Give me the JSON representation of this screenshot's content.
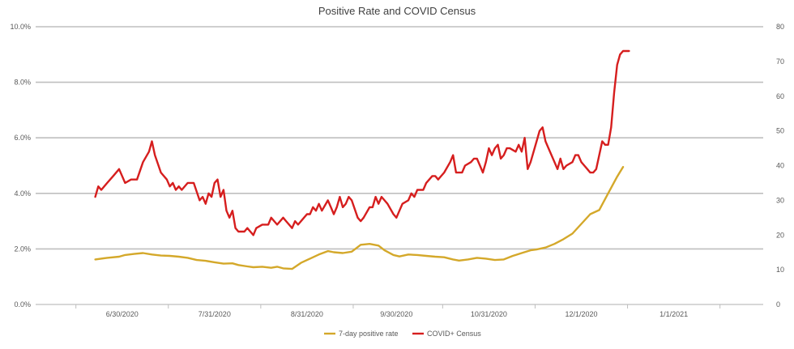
{
  "chart_data": {
    "type": "line",
    "title": "Positive Rate and COVID Census",
    "x_axis": {
      "type": "date",
      "ticks": [
        "6/30/2020",
        "7/31/2020",
        "8/31/2020",
        "9/30/2020",
        "10/31/2020",
        "12/1/2020",
        "1/1/2021"
      ],
      "range": [
        "2020-06-01",
        "2021-01-31"
      ]
    },
    "y_left": {
      "range": [
        0,
        0.1
      ],
      "ticks": [
        "0.0%",
        "2.0%",
        "4.0%",
        "6.0%",
        "8.0%",
        "10.0%"
      ]
    },
    "y_right": {
      "range": [
        0,
        80
      ],
      "ticks": [
        "0",
        "10",
        "20",
        "30",
        "40",
        "50",
        "60",
        "70",
        "80"
      ]
    },
    "grid": true,
    "legend_position": "bottom",
    "series": [
      {
        "name": "7-day positive rate",
        "axis": "left",
        "color": "#d4a82a",
        "points": [
          [
            "2020-06-21",
            0.0162
          ],
          [
            "2020-06-25",
            0.0168
          ],
          [
            "2020-06-29",
            0.0172
          ],
          [
            "2020-07-01",
            0.0178
          ],
          [
            "2020-07-04",
            0.0182
          ],
          [
            "2020-07-07",
            0.0185
          ],
          [
            "2020-07-10",
            0.018
          ],
          [
            "2020-07-13",
            0.0176
          ],
          [
            "2020-07-16",
            0.0175
          ],
          [
            "2020-07-19",
            0.0172
          ],
          [
            "2020-07-22",
            0.0168
          ],
          [
            "2020-07-25",
            0.016
          ],
          [
            "2020-07-28",
            0.0157
          ],
          [
            "2020-07-31",
            0.0152
          ],
          [
            "2020-08-03",
            0.0147
          ],
          [
            "2020-08-06",
            0.0148
          ],
          [
            "2020-08-08",
            0.0142
          ],
          [
            "2020-08-11",
            0.0137
          ],
          [
            "2020-08-13",
            0.0134
          ],
          [
            "2020-08-16",
            0.0136
          ],
          [
            "2020-08-19",
            0.0132
          ],
          [
            "2020-08-21",
            0.0136
          ],
          [
            "2020-08-23",
            0.013
          ],
          [
            "2020-08-26",
            0.0128
          ],
          [
            "2020-08-29",
            0.015
          ],
          [
            "2020-09-01",
            0.0165
          ],
          [
            "2020-09-04",
            0.018
          ],
          [
            "2020-09-07",
            0.0192
          ],
          [
            "2020-09-09",
            0.0188
          ],
          [
            "2020-09-12",
            0.0185
          ],
          [
            "2020-09-15",
            0.019
          ],
          [
            "2020-09-18",
            0.0215
          ],
          [
            "2020-09-21",
            0.0218
          ],
          [
            "2020-09-24",
            0.0212
          ],
          [
            "2020-09-26",
            0.0195
          ],
          [
            "2020-09-29",
            0.0178
          ],
          [
            "2020-10-01",
            0.0173
          ],
          [
            "2020-10-04",
            0.018
          ],
          [
            "2020-10-07",
            0.0178
          ],
          [
            "2020-10-10",
            0.0175
          ],
          [
            "2020-10-13",
            0.0172
          ],
          [
            "2020-10-16",
            0.017
          ],
          [
            "2020-10-19",
            0.0162
          ],
          [
            "2020-10-21",
            0.0158
          ],
          [
            "2020-10-24",
            0.0162
          ],
          [
            "2020-10-27",
            0.0168
          ],
          [
            "2020-10-30",
            0.0165
          ],
          [
            "2020-11-02",
            0.016
          ],
          [
            "2020-11-05",
            0.0162
          ],
          [
            "2020-11-08",
            0.0175
          ],
          [
            "2020-11-11",
            0.0185
          ],
          [
            "2020-11-14",
            0.0195
          ],
          [
            "2020-11-16",
            0.0198
          ],
          [
            "2020-11-19",
            0.0205
          ],
          [
            "2020-11-22",
            0.0218
          ],
          [
            "2020-11-25",
            0.0235
          ],
          [
            "2020-11-28",
            0.0255
          ],
          [
            "2020-12-01",
            0.029
          ],
          [
            "2020-12-04",
            0.0325
          ],
          [
            "2020-12-07",
            0.034
          ],
          [
            "2020-12-10",
            0.04
          ],
          [
            "2020-12-13",
            0.046
          ],
          [
            "2020-12-15",
            0.0495
          ]
        ]
      },
      {
        "name": "COVID+ Census",
        "axis": "right",
        "color": "#d61e1e",
        "points": [
          [
            "2020-06-21",
            31
          ],
          [
            "2020-06-22",
            34
          ],
          [
            "2020-06-23",
            33
          ],
          [
            "2020-06-25",
            35
          ],
          [
            "2020-06-27",
            37
          ],
          [
            "2020-06-29",
            39
          ],
          [
            "2020-07-01",
            35
          ],
          [
            "2020-07-03",
            36
          ],
          [
            "2020-07-05",
            36
          ],
          [
            "2020-07-07",
            41
          ],
          [
            "2020-07-09",
            44
          ],
          [
            "2020-07-10",
            47
          ],
          [
            "2020-07-11",
            43
          ],
          [
            "2020-07-13",
            38
          ],
          [
            "2020-07-15",
            36
          ],
          [
            "2020-07-16",
            34
          ],
          [
            "2020-07-17",
            35
          ],
          [
            "2020-07-18",
            33
          ],
          [
            "2020-07-19",
            34
          ],
          [
            "2020-07-20",
            33
          ],
          [
            "2020-07-22",
            35
          ],
          [
            "2020-07-23",
            35
          ],
          [
            "2020-07-24",
            35
          ],
          [
            "2020-07-26",
            30
          ],
          [
            "2020-07-27",
            31
          ],
          [
            "2020-07-28",
            29
          ],
          [
            "2020-07-29",
            32
          ],
          [
            "2020-07-30",
            31
          ],
          [
            "2020-07-31",
            35
          ],
          [
            "2020-08-01",
            36
          ],
          [
            "2020-08-02",
            31
          ],
          [
            "2020-08-03",
            33
          ],
          [
            "2020-08-04",
            27
          ],
          [
            "2020-08-05",
            25
          ],
          [
            "2020-08-06",
            27
          ],
          [
            "2020-08-07",
            22
          ],
          [
            "2020-08-08",
            21
          ],
          [
            "2020-08-10",
            21
          ],
          [
            "2020-08-11",
            22
          ],
          [
            "2020-08-12",
            21
          ],
          [
            "2020-08-13",
            20
          ],
          [
            "2020-08-14",
            22
          ],
          [
            "2020-08-16",
            23
          ],
          [
            "2020-08-18",
            23
          ],
          [
            "2020-08-19",
            25
          ],
          [
            "2020-08-20",
            24
          ],
          [
            "2020-08-21",
            23
          ],
          [
            "2020-08-23",
            25
          ],
          [
            "2020-08-24",
            24
          ],
          [
            "2020-08-25",
            23
          ],
          [
            "2020-08-26",
            22
          ],
          [
            "2020-08-27",
            24
          ],
          [
            "2020-08-28",
            23
          ],
          [
            "2020-08-30",
            25
          ],
          [
            "2020-08-31",
            26
          ],
          [
            "2020-09-01",
            26
          ],
          [
            "2020-09-02",
            28
          ],
          [
            "2020-09-03",
            27
          ],
          [
            "2020-09-04",
            29
          ],
          [
            "2020-09-05",
            27
          ],
          [
            "2020-09-07",
            30
          ],
          [
            "2020-09-08",
            28
          ],
          [
            "2020-09-09",
            26
          ],
          [
            "2020-09-10",
            28
          ],
          [
            "2020-09-11",
            31
          ],
          [
            "2020-09-12",
            28
          ],
          [
            "2020-09-13",
            29
          ],
          [
            "2020-09-14",
            31
          ],
          [
            "2020-09-15",
            30
          ],
          [
            "2020-09-17",
            25
          ],
          [
            "2020-09-18",
            24
          ],
          [
            "2020-09-19",
            25
          ],
          [
            "2020-09-21",
            28
          ],
          [
            "2020-09-22",
            28
          ],
          [
            "2020-09-23",
            31
          ],
          [
            "2020-09-24",
            29
          ],
          [
            "2020-09-25",
            31
          ],
          [
            "2020-09-26",
            30
          ],
          [
            "2020-09-27",
            29
          ],
          [
            "2020-09-29",
            26
          ],
          [
            "2020-09-30",
            25
          ],
          [
            "2020-10-01",
            27
          ],
          [
            "2020-10-02",
            29
          ],
          [
            "2020-10-04",
            30
          ],
          [
            "2020-10-05",
            32
          ],
          [
            "2020-10-06",
            31
          ],
          [
            "2020-10-07",
            33
          ],
          [
            "2020-10-08",
            33
          ],
          [
            "2020-10-09",
            33
          ],
          [
            "2020-10-10",
            35
          ],
          [
            "2020-10-12",
            37
          ],
          [
            "2020-10-13",
            37
          ],
          [
            "2020-10-14",
            36
          ],
          [
            "2020-10-15",
            37
          ],
          [
            "2020-10-16",
            38
          ],
          [
            "2020-10-18",
            41
          ],
          [
            "2020-10-19",
            43
          ],
          [
            "2020-10-20",
            38
          ],
          [
            "2020-10-22",
            38
          ],
          [
            "2020-10-23",
            40
          ],
          [
            "2020-10-25",
            41
          ],
          [
            "2020-10-26",
            42
          ],
          [
            "2020-10-27",
            42
          ],
          [
            "2020-10-28",
            40
          ],
          [
            "2020-10-29",
            38
          ],
          [
            "2020-10-30",
            41
          ],
          [
            "2020-10-31",
            45
          ],
          [
            "2020-11-01",
            43
          ],
          [
            "2020-11-02",
            45
          ],
          [
            "2020-11-03",
            46
          ],
          [
            "2020-11-04",
            42
          ],
          [
            "2020-11-05",
            43
          ],
          [
            "2020-11-06",
            45
          ],
          [
            "2020-11-07",
            45
          ],
          [
            "2020-11-09",
            44
          ],
          [
            "2020-11-10",
            46
          ],
          [
            "2020-11-11",
            44
          ],
          [
            "2020-11-12",
            48
          ],
          [
            "2020-11-13",
            39
          ],
          [
            "2020-11-14",
            41
          ],
          [
            "2020-11-16",
            47
          ],
          [
            "2020-11-17",
            50
          ],
          [
            "2020-11-18",
            51
          ],
          [
            "2020-11-19",
            47
          ],
          [
            "2020-11-20",
            45
          ],
          [
            "2020-11-22",
            41
          ],
          [
            "2020-11-23",
            39
          ],
          [
            "2020-11-24",
            42
          ],
          [
            "2020-11-25",
            39
          ],
          [
            "2020-11-26",
            40
          ],
          [
            "2020-11-28",
            41
          ],
          [
            "2020-11-29",
            43
          ],
          [
            "2020-11-30",
            43
          ],
          [
            "2020-12-01",
            41
          ],
          [
            "2020-12-02",
            40
          ],
          [
            "2020-12-03",
            39
          ],
          [
            "2020-12-04",
            38
          ],
          [
            "2020-12-05",
            38
          ],
          [
            "2020-12-06",
            39
          ],
          [
            "2020-12-08",
            47
          ],
          [
            "2020-12-09",
            46
          ],
          [
            "2020-12-10",
            46
          ],
          [
            "2020-12-11",
            51
          ],
          [
            "2020-12-12",
            61
          ],
          [
            "2020-12-13",
            69
          ],
          [
            "2020-12-14",
            72
          ],
          [
            "2020-12-15",
            73
          ],
          [
            "2020-12-17",
            73
          ]
        ]
      }
    ]
  }
}
